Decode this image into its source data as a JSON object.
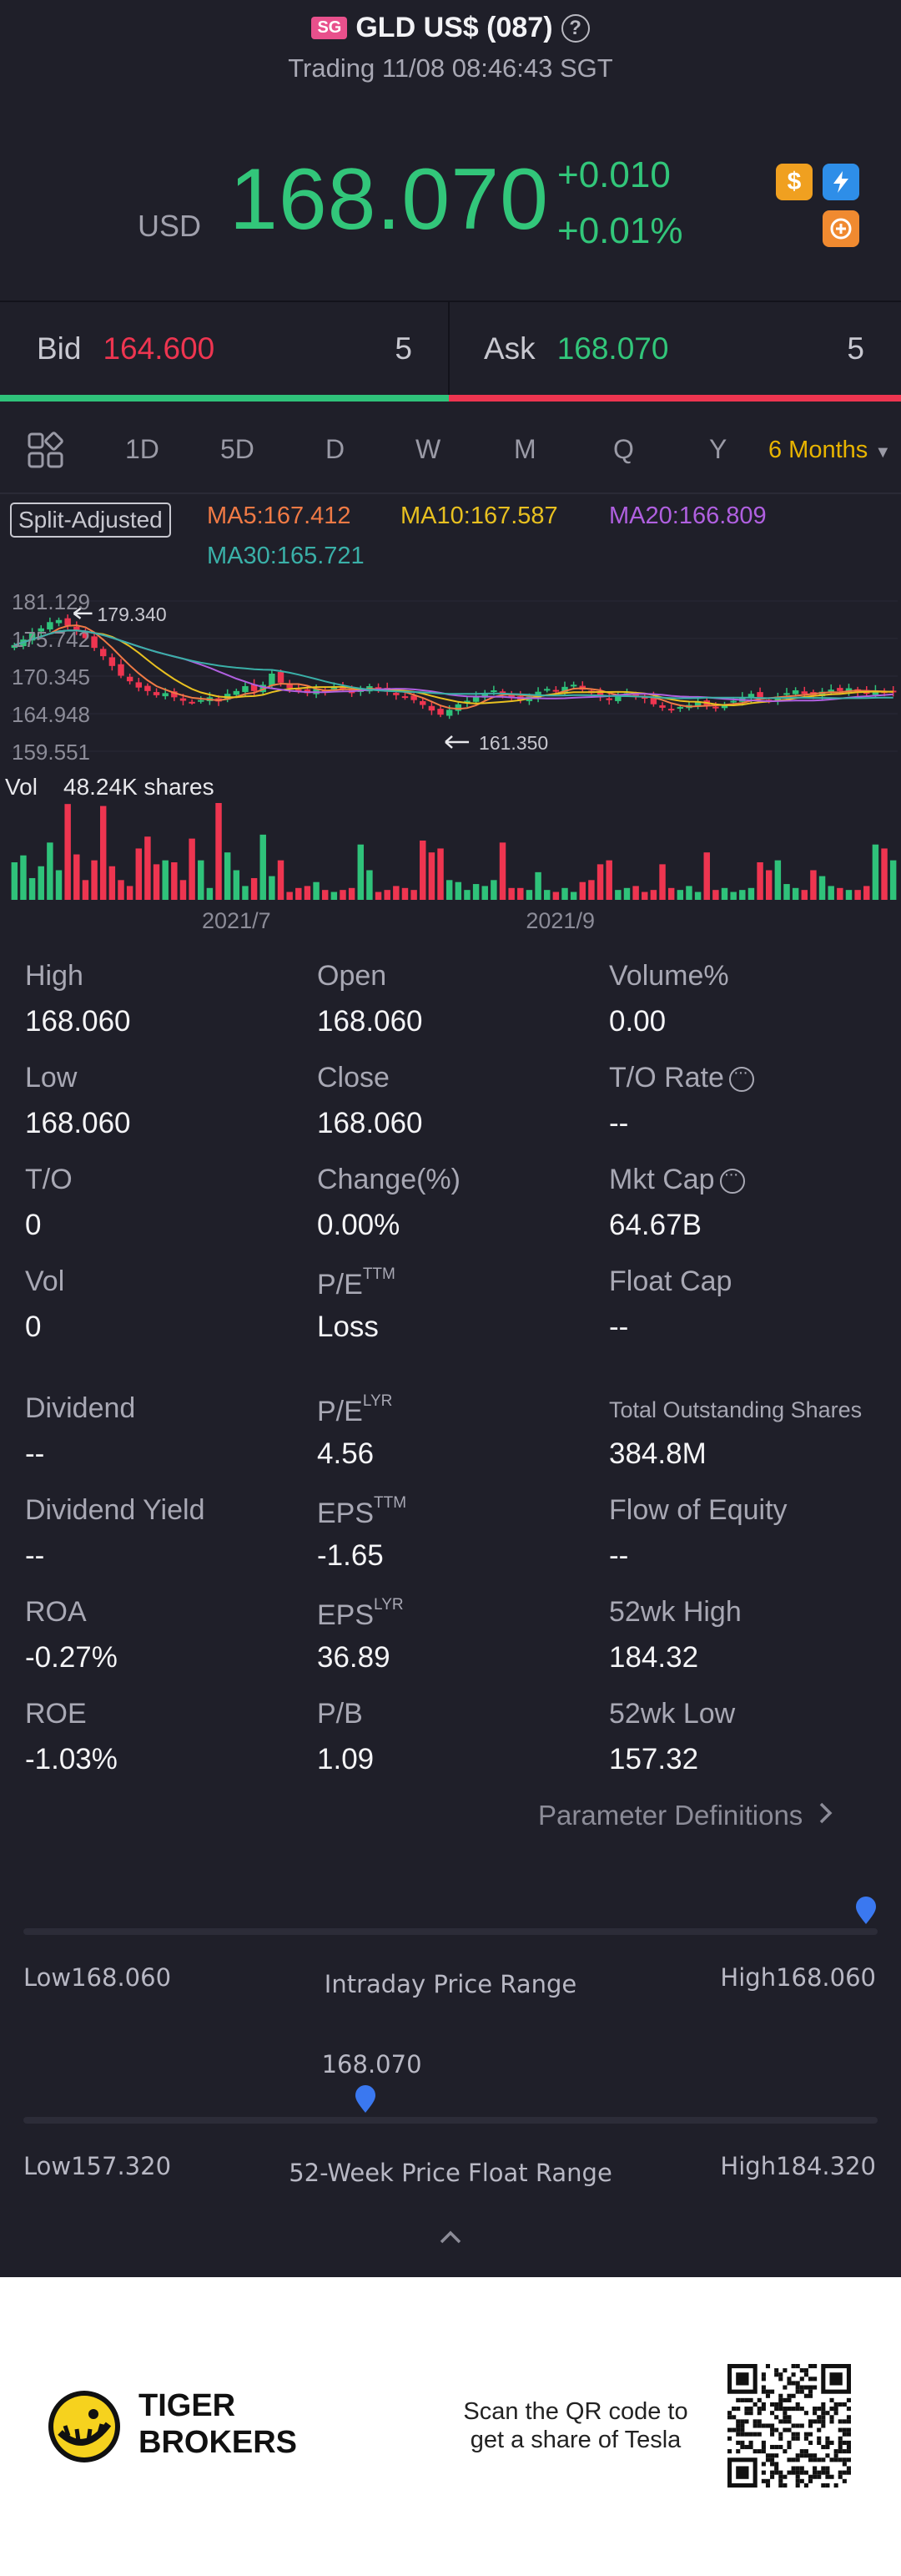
{
  "header": {
    "market_badge": "SG",
    "title": "GLD US$ (087)",
    "status": "Trading 11/08 08:46:43 SGT"
  },
  "quote": {
    "currency": "USD",
    "price": "168.070",
    "change": "+0.010",
    "change_pct": "+0.01%",
    "icons": [
      "dollar-icon",
      "flash-icon",
      "brain-icon"
    ]
  },
  "bidask": {
    "bid_label": "Bid",
    "bid_price": "164.600",
    "bid_size": "5",
    "ask_label": "Ask",
    "ask_price": "168.070",
    "ask_size": "5"
  },
  "tabs": {
    "items": [
      "1D",
      "5D",
      "D",
      "W",
      "M",
      "Q",
      "Y"
    ],
    "active": "6 Months"
  },
  "chart": {
    "split_label": "Split-Adjusted",
    "ma5": "MA5:167.412",
    "ma10": "MA10:167.587",
    "ma20": "MA20:166.809",
    "ma30": "MA30:165.721",
    "yticks": [
      "181.129",
      "175.742",
      "170.345",
      "164.948",
      "159.551"
    ],
    "high_marker": "179.340",
    "low_marker": "161.350",
    "vol_label": "Vol",
    "vol_value": "48.24K shares",
    "xticks": [
      "2021/7",
      "2021/9"
    ],
    "colors": {
      "up": "#2fc27a",
      "down": "#ee3550",
      "ma5": "#f07a45",
      "ma10": "#e8c020",
      "ma20": "#b060e0",
      "ma30": "#3ab0a8"
    }
  },
  "chart_data": {
    "type": "candlestick",
    "title": "",
    "xlabel": "",
    "ylabel": "",
    "ylim": [
      159.551,
      181.129
    ],
    "x_ticks": [
      "2021/7",
      "2021/9"
    ],
    "close": [
      174.8,
      175.6,
      176.5,
      177.2,
      178.1,
      178.4,
      177.6,
      176.9,
      175.8,
      174.4,
      173.2,
      171.8,
      170.4,
      169.6,
      168.7,
      168.2,
      167.6,
      167.9,
      167.3,
      166.8,
      166.6,
      166.9,
      167.3,
      166.7,
      167.8,
      168.2,
      168.9,
      168.2,
      169.1,
      170.7,
      169.4,
      168.6,
      168.2,
      167.9,
      168.5,
      168.2,
      168.9,
      168.7,
      167.9,
      168.3,
      168.9,
      168.4,
      168.1,
      167.6,
      167.3,
      166.9,
      166.2,
      165.4,
      164.8,
      165.5,
      166.3,
      166.8,
      167.4,
      167.9,
      168.3,
      167.8,
      167.2,
      166.9,
      167.4,
      168.1,
      168.5,
      168.2,
      168.8,
      169.1,
      168.4,
      167.9,
      167.3,
      166.9,
      167.6,
      167.9,
      167.5,
      167.1,
      166.3,
      165.8,
      165.6,
      165.9,
      166.2,
      166.6,
      166.1,
      165.9,
      166.3,
      166.8,
      167.3,
      167.8,
      167.1,
      166.9,
      167.4,
      167.9,
      168.3,
      167.8,
      167.6,
      168.1,
      168.4,
      168.2,
      168.6,
      168.1,
      167.8,
      168.3,
      168.0,
      168.07
    ],
    "volume": [
      38,
      45,
      22,
      34,
      58,
      30,
      97,
      46,
      20,
      40,
      95,
      34,
      20,
      14,
      52,
      64,
      36,
      40,
      38,
      20,
      62,
      40,
      12,
      98,
      48,
      30,
      14,
      22,
      66,
      24,
      40,
      8,
      12,
      14,
      18,
      10,
      8,
      10,
      12,
      56,
      30,
      8,
      10,
      14,
      12,
      10,
      60,
      48,
      52,
      20,
      18,
      10,
      16,
      14,
      20,
      58,
      12,
      12,
      10,
      28,
      10,
      8,
      12,
      8,
      18,
      20,
      36,
      40,
      10,
      12,
      14,
      8,
      10,
      36,
      12,
      10,
      14,
      8,
      48,
      10,
      12,
      8,
      10,
      12,
      38,
      30,
      40,
      16,
      12,
      10,
      30,
      24,
      14,
      12,
      10,
      10,
      14,
      56,
      52,
      40
    ],
    "high": 179.34,
    "low": 161.35,
    "volume_label": "48.24K shares"
  },
  "stats": [
    {
      "label": "High",
      "value": "168.060"
    },
    {
      "label": "Open",
      "value": "168.060"
    },
    {
      "label": "Volume%",
      "value": "0.00"
    },
    {
      "label": "Low",
      "value": "168.060"
    },
    {
      "label": "Close",
      "value": "168.060"
    },
    {
      "label": "T/O Rate",
      "value": "--"
    },
    {
      "label": "T/O",
      "value": "0"
    },
    {
      "label": "Change(%)",
      "value": "0.00%"
    },
    {
      "label": "Mkt Cap",
      "value": "64.67B"
    },
    {
      "label": "Vol",
      "value": "0"
    },
    {
      "label": "P/E",
      "sup": "TTM",
      "value": "Loss"
    },
    {
      "label": "Float Cap",
      "value": "--"
    },
    {
      "label": "Dividend",
      "value": "--"
    },
    {
      "label": "P/E",
      "sup": "LYR",
      "value": "4.56"
    },
    {
      "label": "Total Outstanding Shares",
      "value": "384.8M"
    },
    {
      "label": "Dividend Yield",
      "value": "--"
    },
    {
      "label": "EPS",
      "sup": "TTM",
      "value": "-1.65"
    },
    {
      "label": "Flow of Equity",
      "value": "--"
    },
    {
      "label": "ROA",
      "value": "-0.27%"
    },
    {
      "label": "EPS",
      "sup": "LYR",
      "value": "36.89"
    },
    {
      "label": "52wk High",
      "value": "184.32"
    },
    {
      "label": "ROE",
      "value": "-1.03%"
    },
    {
      "label": "P/B",
      "value": "1.09"
    },
    {
      "label": "52wk Low",
      "value": "157.32"
    }
  ],
  "param_link": "Parameter Definitions",
  "intraday": {
    "low": "Low168.060",
    "title": "Intraday Price Range",
    "high": "High168.060",
    "position": 1.0
  },
  "week52": {
    "current": "168.070",
    "low": "Low157.320",
    "title": "52-Week Price Float Range",
    "high": "High184.320",
    "position": 0.4
  },
  "footer": {
    "brand_line1": "TIGER",
    "brand_line2": "BROKERS",
    "scan_line1": "Scan the QR code to",
    "scan_line2": "get a share of Tesla"
  }
}
